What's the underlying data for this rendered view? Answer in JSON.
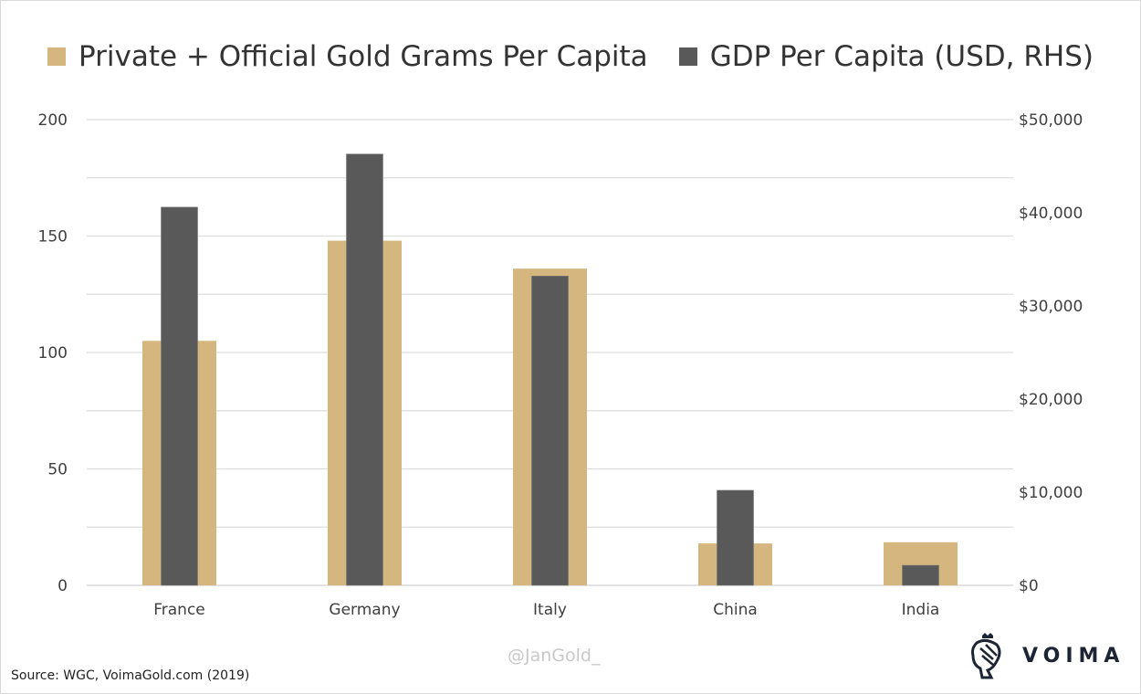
{
  "chart_data": {
    "type": "bar",
    "categories": [
      "France",
      "Germany",
      "Italy",
      "China",
      "India"
    ],
    "series": [
      {
        "name": "Private + Official Gold Grams Per Capita",
        "axis": "left",
        "color": "#d5b67e",
        "values": [
          105,
          148,
          136,
          18,
          18.5
        ]
      },
      {
        "name": "GDP Per Capita (USD, RHS)",
        "axis": "right",
        "color": "#595959",
        "values": [
          40600,
          46300,
          33200,
          10200,
          2150
        ]
      }
    ],
    "left_axis": {
      "ylim": [
        0,
        200
      ],
      "ticks": [
        "0",
        "50",
        "100",
        "150",
        "200"
      ]
    },
    "right_axis": {
      "ylim": [
        0,
        50000
      ],
      "ticks": [
        "$0",
        "$10,000",
        "$20,000",
        "$30,000",
        "$40,000",
        "$50,000"
      ]
    },
    "grid": true,
    "legend_placement": "top"
  },
  "source": "Source: WGC, VoimaGold.com (2019)",
  "watermark": "@JanGold_",
  "logo": {
    "text": "VOIMA"
  }
}
